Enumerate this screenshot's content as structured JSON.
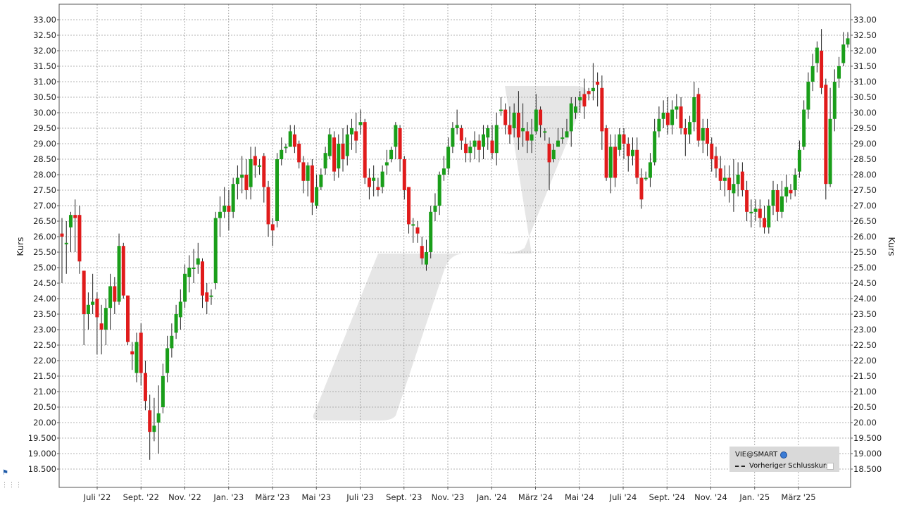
{
  "chart_data": {
    "type": "candlestick",
    "ylabel": "Kurs",
    "ylim": [
      18.3,
      33.3
    ],
    "y_ticks": [
      "18.500",
      "19.000",
      "19.500",
      "20.00",
      "20.50",
      "21.00",
      "21.50",
      "22.00",
      "22.50",
      "23.00",
      "23.50",
      "24.00",
      "24.50",
      "25.00",
      "25.50",
      "26.00",
      "26.50",
      "27.00",
      "27.50",
      "28.00",
      "28.50",
      "29.00",
      "29.50",
      "30.00",
      "30.50",
      "31.00",
      "31.50",
      "32.00",
      "32.50",
      "33.00"
    ],
    "x_labels": [
      "Juli '22",
      "Sept. '22",
      "Nov. '22",
      "Jan. '23",
      "März '23",
      "Mai '23",
      "Juli '23",
      "Sept. '23",
      "Nov. '23",
      "Jan. '24",
      "März '24",
      "Mai '24",
      "Juli '24",
      "Sept. '24",
      "Nov. '24",
      "Jan. '25",
      "März '25"
    ],
    "candles": [
      [
        26.1,
        26.0,
        26.6,
        24.5
      ],
      [
        25.8,
        25.8,
        26.5,
        24.8
      ],
      [
        26.3,
        26.7,
        26.8,
        25.5
      ],
      [
        26.7,
        26.6,
        27.2,
        25.5
      ],
      [
        26.7,
        25.2,
        27.0,
        24.8
      ],
      [
        24.9,
        23.5,
        24.9,
        22.5
      ],
      [
        23.5,
        23.8,
        24.2,
        23.0
      ],
      [
        23.8,
        23.9,
        24.8,
        23.5
      ],
      [
        24.0,
        23.4,
        24.2,
        22.2
      ],
      [
        23.2,
        23.0,
        23.8,
        22.2
      ],
      [
        23.0,
        23.7,
        24.0,
        22.5
      ],
      [
        23.7,
        24.4,
        24.8,
        23.0
      ],
      [
        24.4,
        23.9,
        24.7,
        23.5
      ],
      [
        23.9,
        25.7,
        26.1,
        23.8
      ],
      [
        25.7,
        24.1,
        25.8,
        24.0
      ],
      [
        24.1,
        22.6,
        24.1,
        22.5
      ],
      [
        22.3,
        22.2,
        22.6,
        21.7
      ],
      [
        21.6,
        22.6,
        22.9,
        21.3
      ],
      [
        22.9,
        21.6,
        23.2,
        21.2
      ],
      [
        21.6,
        20.7,
        22.0,
        20.4
      ],
      [
        20.4,
        19.7,
        20.9,
        18.8
      ],
      [
        19.7,
        19.9,
        20.8,
        19.4
      ],
      [
        20.0,
        20.3,
        21.2,
        19.0
      ],
      [
        20.5,
        21.5,
        21.9,
        20.3
      ],
      [
        21.6,
        22.4,
        22.8,
        21.3
      ],
      [
        22.4,
        22.8,
        23.2,
        22.1
      ],
      [
        22.9,
        23.5,
        23.8,
        22.7
      ],
      [
        23.4,
        23.9,
        24.3,
        23.0
      ],
      [
        23.9,
        24.8,
        25.1,
        23.7
      ],
      [
        24.7,
        25.0,
        25.4,
        24.2
      ],
      [
        25.0,
        25.0,
        25.6,
        24.5
      ],
      [
        25.1,
        25.3,
        25.8,
        24.8
      ],
      [
        25.2,
        24.1,
        25.3,
        23.7
      ],
      [
        24.2,
        23.9,
        24.5,
        23.5
      ],
      [
        24.1,
        24.1,
        24.3,
        23.8
      ],
      [
        24.5,
        26.6,
        26.8,
        24.3
      ],
      [
        26.6,
        26.8,
        27.3,
        26.0
      ],
      [
        26.8,
        27.0,
        27.6,
        26.6
      ],
      [
        27.0,
        26.8,
        27.5,
        26.2
      ],
      [
        26.8,
        27.7,
        27.9,
        26.6
      ],
      [
        27.7,
        27.9,
        28.3,
        27.2
      ],
      [
        27.9,
        28.0,
        28.6,
        27.4
      ],
      [
        28.0,
        27.5,
        28.5,
        27.2
      ],
      [
        27.6,
        28.5,
        28.9,
        27.2
      ],
      [
        28.6,
        28.3,
        28.9,
        27.9
      ],
      [
        28.3,
        28.3,
        28.5,
        28.0
      ],
      [
        28.6,
        27.6,
        28.7,
        27.1
      ],
      [
        27.6,
        26.4,
        27.8,
        26.0
      ],
      [
        26.4,
        26.2,
        26.6,
        25.7
      ],
      [
        26.5,
        28.5,
        28.7,
        26.3
      ],
      [
        28.5,
        28.8,
        29.2,
        28.3
      ],
      [
        28.9,
        28.9,
        29.0,
        28.7
      ],
      [
        28.9,
        29.4,
        29.6,
        28.9
      ],
      [
        29.3,
        28.9,
        29.6,
        28.7
      ],
      [
        29.0,
        28.4,
        29.1,
        28.2
      ],
      [
        28.4,
        27.8,
        28.6,
        27.4
      ],
      [
        27.8,
        28.3,
        28.4,
        27.3
      ],
      [
        28.3,
        27.1,
        28.5,
        26.7
      ],
      [
        27.0,
        27.6,
        28.0,
        26.9
      ],
      [
        27.6,
        28.0,
        28.2,
        27.5
      ],
      [
        28.2,
        28.7,
        28.9,
        28.0
      ],
      [
        28.6,
        29.3,
        29.5,
        28.5
      ],
      [
        29.2,
        28.1,
        29.4,
        27.8
      ],
      [
        28.2,
        29.0,
        29.3,
        27.9
      ],
      [
        29.0,
        28.5,
        29.5,
        28.1
      ],
      [
        28.6,
        29.3,
        29.6,
        28.3
      ],
      [
        29.3,
        29.5,
        29.8,
        28.8
      ],
      [
        29.4,
        29.1,
        30.0,
        28.7
      ],
      [
        29.6,
        29.7,
        30.1,
        29.3
      ],
      [
        29.7,
        27.9,
        29.8,
        27.7
      ],
      [
        27.9,
        27.6,
        28.2,
        27.2
      ],
      [
        27.8,
        27.9,
        28.3,
        27.3
      ],
      [
        27.6,
        27.5,
        27.9,
        27.3
      ],
      [
        27.6,
        28.1,
        28.3,
        27.4
      ],
      [
        28.3,
        28.4,
        28.8,
        28.0
      ],
      [
        28.5,
        28.8,
        28.9,
        28.4
      ],
      [
        28.9,
        29.6,
        29.7,
        28.5
      ],
      [
        29.5,
        28.5,
        29.6,
        28.1
      ],
      [
        28.5,
        27.5,
        28.6,
        27.2
      ],
      [
        27.6,
        26.4,
        27.6,
        26.1
      ],
      [
        26.4,
        26.4,
        26.6,
        25.8
      ],
      [
        26.3,
        26.1,
        26.5,
        25.8
      ],
      [
        25.7,
        25.3,
        26.0,
        25.1
      ],
      [
        25.1,
        25.5,
        25.9,
        24.9
      ],
      [
        25.5,
        26.8,
        27.0,
        25.3
      ],
      [
        26.8,
        27.0,
        27.4,
        26.5
      ],
      [
        27.0,
        28.0,
        28.1,
        26.7
      ],
      [
        28.0,
        28.2,
        28.6,
        27.8
      ],
      [
        28.2,
        28.9,
        29.2,
        28.0
      ],
      [
        28.9,
        29.5,
        29.7,
        28.7
      ],
      [
        29.5,
        29.6,
        30.1,
        29.3
      ],
      [
        29.5,
        29.1,
        29.6,
        28.8
      ],
      [
        29.0,
        28.7,
        29.2,
        28.4
      ],
      [
        28.7,
        28.9,
        29.1,
        28.4
      ],
      [
        28.9,
        29.1,
        29.4,
        28.5
      ],
      [
        29.1,
        28.8,
        29.3,
        28.4
      ],
      [
        28.9,
        29.3,
        29.6,
        28.5
      ],
      [
        29.2,
        29.5,
        29.6,
        28.8
      ],
      [
        29.1,
        28.7,
        29.6,
        28.5
      ],
      [
        28.7,
        29.6,
        30.0,
        28.3
      ],
      [
        30.1,
        30.1,
        30.5,
        29.9
      ],
      [
        30.1,
        29.6,
        30.3,
        29.3
      ],
      [
        29.6,
        29.3,
        30.2,
        29.0
      ],
      [
        29.5,
        30.0,
        30.3,
        29.2
      ],
      [
        30.0,
        29.2,
        30.7,
        28.8
      ],
      [
        29.4,
        29.5,
        30.3,
        28.9
      ],
      [
        29.4,
        29.1,
        29.7,
        28.7
      ],
      [
        29.1,
        29.3,
        29.8,
        28.7
      ],
      [
        29.4,
        30.1,
        30.6,
        29.3
      ],
      [
        30.1,
        29.6,
        30.2,
        29.2
      ],
      [
        29.4,
        29.4,
        29.5,
        29.1
      ],
      [
        29.0,
        28.4,
        29.2,
        27.5
      ],
      [
        28.5,
        28.8,
        29.0,
        28.4
      ],
      [
        28.9,
        29.1,
        29.5,
        28.9
      ],
      [
        29.2,
        29.2,
        29.5,
        29.0
      ],
      [
        29.2,
        29.4,
        29.8,
        29.2
      ],
      [
        29.4,
        30.3,
        30.5,
        28.9
      ],
      [
        30.0,
        30.2,
        30.5,
        29.8
      ],
      [
        30.4,
        30.5,
        30.7,
        30.0
      ],
      [
        30.6,
        30.2,
        31.1,
        29.8
      ],
      [
        30.7,
        30.6,
        30.8,
        30.4
      ],
      [
        30.7,
        30.8,
        31.6,
        30.4
      ],
      [
        31.0,
        30.9,
        31.3,
        30.2
      ],
      [
        30.8,
        29.4,
        31.2,
        28.8
      ],
      [
        29.5,
        27.9,
        29.6,
        27.8
      ],
      [
        27.9,
        28.9,
        29.3,
        27.4
      ],
      [
        28.9,
        27.9,
        29.3,
        27.6
      ],
      [
        28.8,
        29.3,
        29.5,
        28.6
      ],
      [
        29.3,
        29.0,
        29.5,
        28.5
      ],
      [
        29.0,
        28.6,
        29.2,
        28.1
      ],
      [
        28.6,
        28.8,
        29.2,
        28.3
      ],
      [
        28.8,
        27.9,
        29.2,
        27.7
      ],
      [
        27.9,
        27.2,
        28.2,
        26.9
      ],
      [
        27.9,
        27.9,
        28.1,
        27.8
      ],
      [
        27.9,
        28.4,
        28.7,
        27.6
      ],
      [
        28.4,
        29.4,
        29.8,
        28.3
      ],
      [
        29.4,
        29.8,
        30.2,
        29.2
      ],
      [
        29.8,
        30.0,
        30.4,
        29.5
      ],
      [
        30.0,
        29.6,
        30.5,
        29.3
      ],
      [
        29.6,
        30.1,
        30.4,
        29.3
      ],
      [
        30.1,
        30.2,
        30.6,
        29.8
      ],
      [
        30.2,
        29.5,
        30.5,
        29.3
      ],
      [
        29.5,
        29.3,
        29.8,
        28.6
      ],
      [
        29.3,
        29.7,
        29.9,
        29.0
      ],
      [
        29.7,
        30.5,
        31.0,
        29.4
      ],
      [
        30.6,
        29.1,
        30.8,
        28.9
      ],
      [
        29.1,
        29.5,
        29.8,
        28.7
      ],
      [
        29.5,
        29.0,
        29.8,
        28.6
      ],
      [
        29.0,
        28.5,
        29.2,
        28.1
      ],
      [
        28.6,
        28.2,
        28.9,
        27.9
      ],
      [
        28.2,
        27.8,
        28.6,
        27.5
      ],
      [
        27.8,
        27.9,
        28.3,
        27.3
      ],
      [
        27.9,
        27.5,
        28.3,
        27.1
      ],
      [
        27.4,
        27.7,
        28.5,
        26.8
      ],
      [
        27.7,
        28.0,
        28.4,
        27.3
      ],
      [
        28.1,
        27.5,
        28.4,
        27.3
      ],
      [
        27.5,
        26.8,
        27.8,
        26.5
      ],
      [
        26.8,
        26.8,
        27.2,
        26.3
      ],
      [
        26.8,
        26.9,
        27.2,
        26.5
      ],
      [
        26.9,
        26.6,
        27.2,
        26.3
      ],
      [
        26.6,
        26.3,
        27.0,
        26.1
      ],
      [
        26.3,
        27.0,
        27.2,
        26.1
      ],
      [
        27.0,
        27.5,
        27.8,
        26.7
      ],
      [
        27.5,
        26.8,
        27.7,
        26.5
      ],
      [
        26.8,
        27.3,
        27.8,
        26.6
      ],
      [
        27.3,
        27.6,
        28.0,
        27.1
      ],
      [
        27.5,
        27.4,
        27.7,
        27.2
      ],
      [
        27.5,
        28.0,
        28.2,
        27.3
      ],
      [
        28.1,
        28.8,
        29.1,
        27.9
      ],
      [
        28.9,
        30.1,
        30.4,
        28.8
      ],
      [
        30.1,
        31.0,
        31.3,
        29.8
      ],
      [
        31.0,
        31.5,
        31.9,
        30.7
      ],
      [
        31.6,
        32.1,
        32.3,
        31.3
      ],
      [
        32.0,
        30.8,
        32.7,
        30.6
      ],
      [
        30.9,
        27.7,
        31.1,
        27.2
      ],
      [
        27.7,
        29.8,
        30.8,
        27.6
      ],
      [
        29.8,
        31.0,
        31.4,
        29.4
      ],
      [
        31.1,
        31.5,
        31.8,
        30.8
      ],
      [
        31.6,
        32.2,
        32.6,
        31.5
      ],
      [
        32.2,
        32.4,
        32.6,
        32.1
      ]
    ]
  },
  "legend": {
    "symbol": "VIE@SMART",
    "prev_close_label": "Vorheriger Schlusskurs"
  },
  "colors": {
    "up": "#1a9e1a",
    "down": "#e01b1b",
    "grid": "#9a9a9a",
    "watermark": "#e6e6e6"
  }
}
